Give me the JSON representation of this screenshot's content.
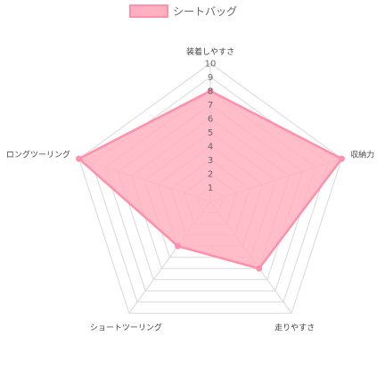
{
  "chart_data": {
    "type": "radar",
    "axes": [
      "装着しやすさ",
      "収納力",
      "走りやすさ",
      "ショートツーリング",
      "ロングツーリング"
    ],
    "ticks": [
      "1",
      "2",
      "3",
      "4",
      "5",
      "6",
      "7",
      "8",
      "9",
      "10"
    ],
    "range": [
      0,
      10
    ],
    "grid": true,
    "legend_position": "top",
    "series": [
      {
        "name": "シートバッグ",
        "values": [
          8,
          10,
          6,
          4,
          10
        ],
        "fill_color": "#ffb1c1",
        "line_color": "#ff8fab"
      }
    ]
  }
}
